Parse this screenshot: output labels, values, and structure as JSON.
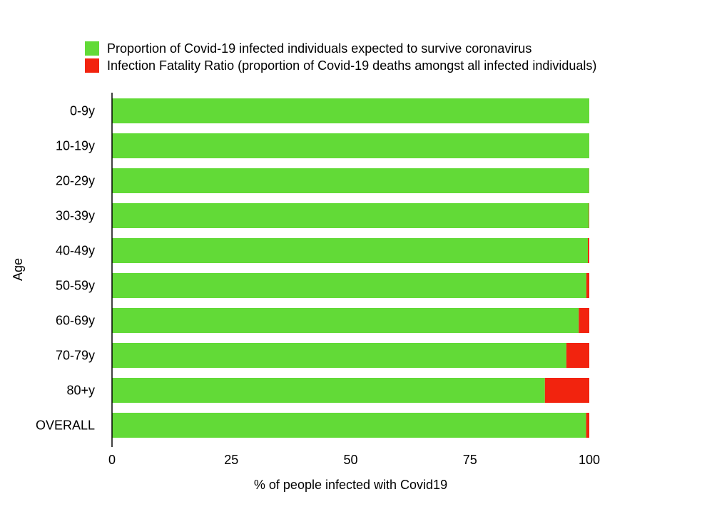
{
  "legend": [
    {
      "label": "Proportion of Covid-19 infected individuals expected to survive coronavirus",
      "color": "#62da37"
    },
    {
      "label": "Infection Fatality Ratio (proportion of Covid-19 deaths amongst all infected individuals)",
      "color": "#f2230e"
    }
  ],
  "chart_data": {
    "type": "bar",
    "orientation": "horizontal",
    "stacked": true,
    "title": "",
    "xlabel": "% of people infected with Covid19",
    "ylabel": "Age",
    "xlim": [
      0,
      100
    ],
    "xticks": [
      "0",
      "25",
      "50",
      "75",
      "100"
    ],
    "grid": false,
    "legend_position": "top",
    "categories": [
      "0-9y",
      "10-19y",
      "20-29y",
      "30-39y",
      "40-49y",
      "50-59y",
      "60-69y",
      "70-79y",
      "80+y",
      "OVERALL"
    ],
    "series": [
      {
        "name": "Proportion of Covid-19 infected individuals expected to survive coronavirus",
        "color": "#62da37",
        "values": [
          99.998,
          99.993,
          99.969,
          99.916,
          99.705,
          99.39,
          97.8,
          95.2,
          90.7,
          99.34
        ]
      },
      {
        "name": "Infection Fatality Ratio (proportion of Covid-19 deaths amongst all infected individuals)",
        "color": "#f2230e",
        "values": [
          0.002,
          0.007,
          0.031,
          0.084,
          0.295,
          0.61,
          2.2,
          4.8,
          9.3,
          0.66
        ]
      }
    ]
  }
}
